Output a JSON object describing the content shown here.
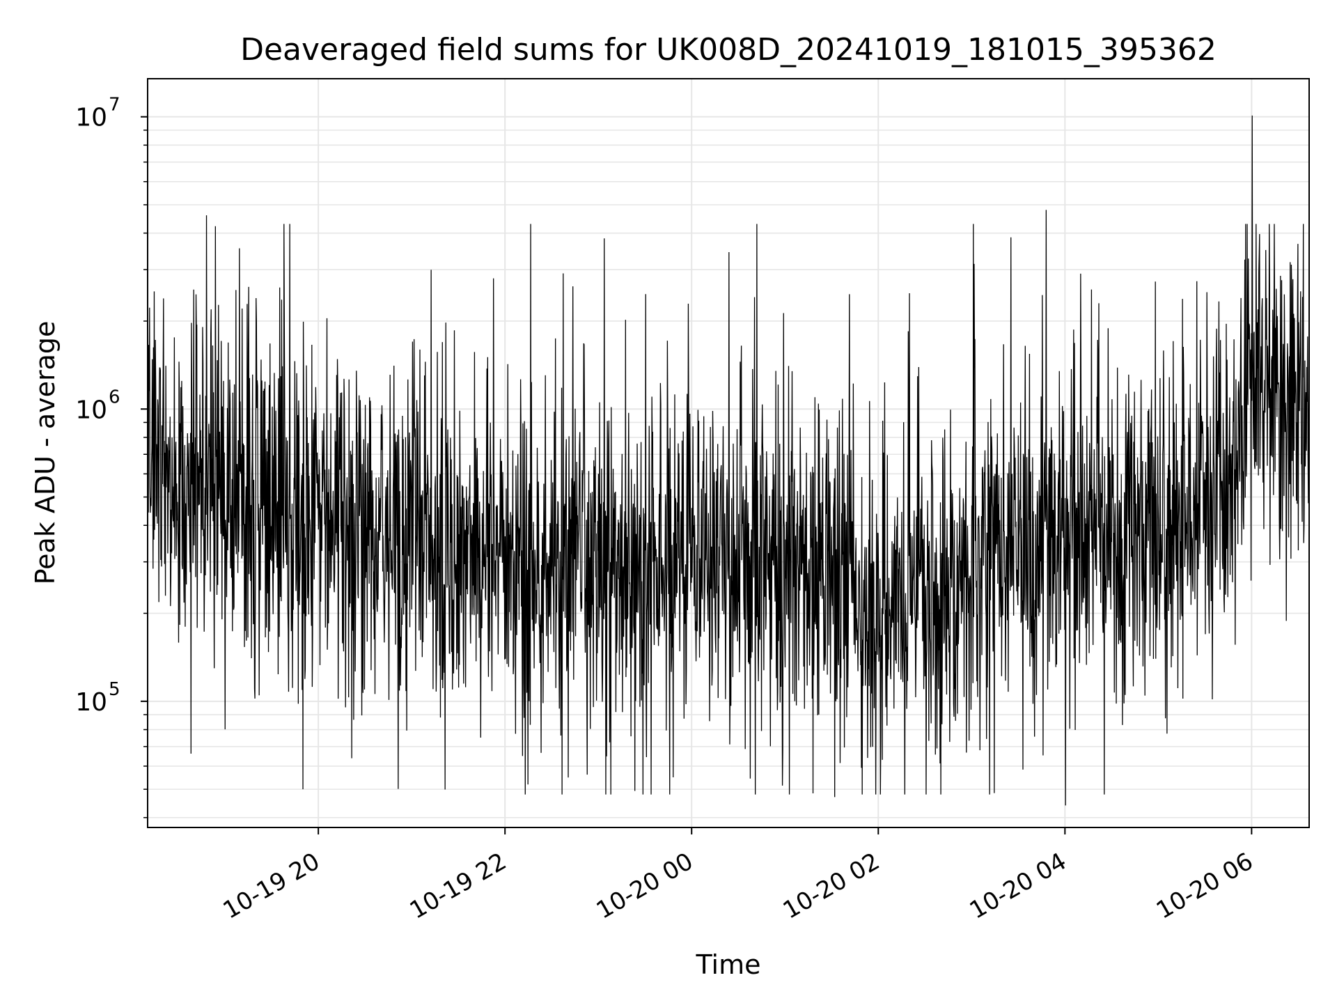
{
  "chart_data": {
    "type": "line",
    "title": "Deaveraged field sums for UK008D_20241019_181015_395362",
    "xlabel": "Time",
    "ylabel": "Peak ADU - average",
    "yscale": "log",
    "ylim": [
      37000,
      13500000
    ],
    "xlim": [
      "2024-10-19T18:10:15",
      "2024-10-20T06:37:00"
    ],
    "grid": true,
    "line_color": "#000000",
    "grid_color": "#e6e6e6",
    "x_ticks": [
      {
        "value": "2024-10-19T20:00:00",
        "label": "10-19 20"
      },
      {
        "value": "2024-10-19T22:00:00",
        "label": "10-19 22"
      },
      {
        "value": "2024-10-20T00:00:00",
        "label": "10-20 00"
      },
      {
        "value": "2024-10-20T02:00:00",
        "label": "10-20 02"
      },
      {
        "value": "2024-10-20T04:00:00",
        "label": "10-20 04"
      },
      {
        "value": "2024-10-20T06:00:00",
        "label": "10-20 06"
      }
    ],
    "y_ticks": [
      {
        "value": 100000,
        "base": "10",
        "exp": "5"
      },
      {
        "value": 1000000,
        "base": "10",
        "exp": "6"
      },
      {
        "value": 10000000,
        "base": "10",
        "exp": "7"
      }
    ],
    "series": [
      {
        "x": [
          "2024-10-19T18:10:15",
          "2024-10-19T18:40:00",
          "2024-10-19T19:00:00",
          "2024-10-19T19:30:00",
          "2024-10-19T20:00:00",
          "2024-10-19T20:30:00",
          "2024-10-19T21:00:00",
          "2024-10-19T21:30:00",
          "2024-10-19T22:00:00",
          "2024-10-19T22:30:00",
          "2024-10-19T23:00:00",
          "2024-10-19T23:30:00",
          "2024-10-20T00:00:00",
          "2024-10-20T00:30:00",
          "2024-10-20T01:00:00",
          "2024-10-20T01:30:00",
          "2024-10-20T02:00:00",
          "2024-10-20T02:30:00",
          "2024-10-20T03:00:00",
          "2024-10-20T03:30:00",
          "2024-10-20T04:00:00",
          "2024-10-20T04:30:00",
          "2024-10-20T05:00:00",
          "2024-10-20T05:30:00",
          "2024-10-20T05:50:00",
          "2024-10-20T06:00:00",
          "2024-10-20T06:20:00",
          "2024-10-20T06:37:00"
        ],
        "y": [
          600000,
          580000,
          520000,
          450000,
          400000,
          380000,
          360000,
          340000,
          330000,
          300000,
          280000,
          270000,
          350000,
          330000,
          280000,
          260000,
          220000,
          230000,
          280000,
          320000,
          360000,
          380000,
          400000,
          430000,
          550000,
          1300000,
          1100000,
          1000000
        ],
        "notable_peaks": [
          {
            "x": "2024-10-19T18:48:00",
            "y": 4600000
          },
          {
            "x": "2024-10-20T03:48:00",
            "y": 4800000
          },
          {
            "x": "2024-10-20T06:00:30",
            "y": 10100000
          }
        ],
        "notable_minima": [
          {
            "x": "2024-10-20T04:00:30",
            "y": 44000
          },
          {
            "x": "2024-10-20T01:32:00",
            "y": 47000
          },
          {
            "x": "2024-10-19T19:50:00",
            "y": 50000
          }
        ]
      }
    ]
  }
}
